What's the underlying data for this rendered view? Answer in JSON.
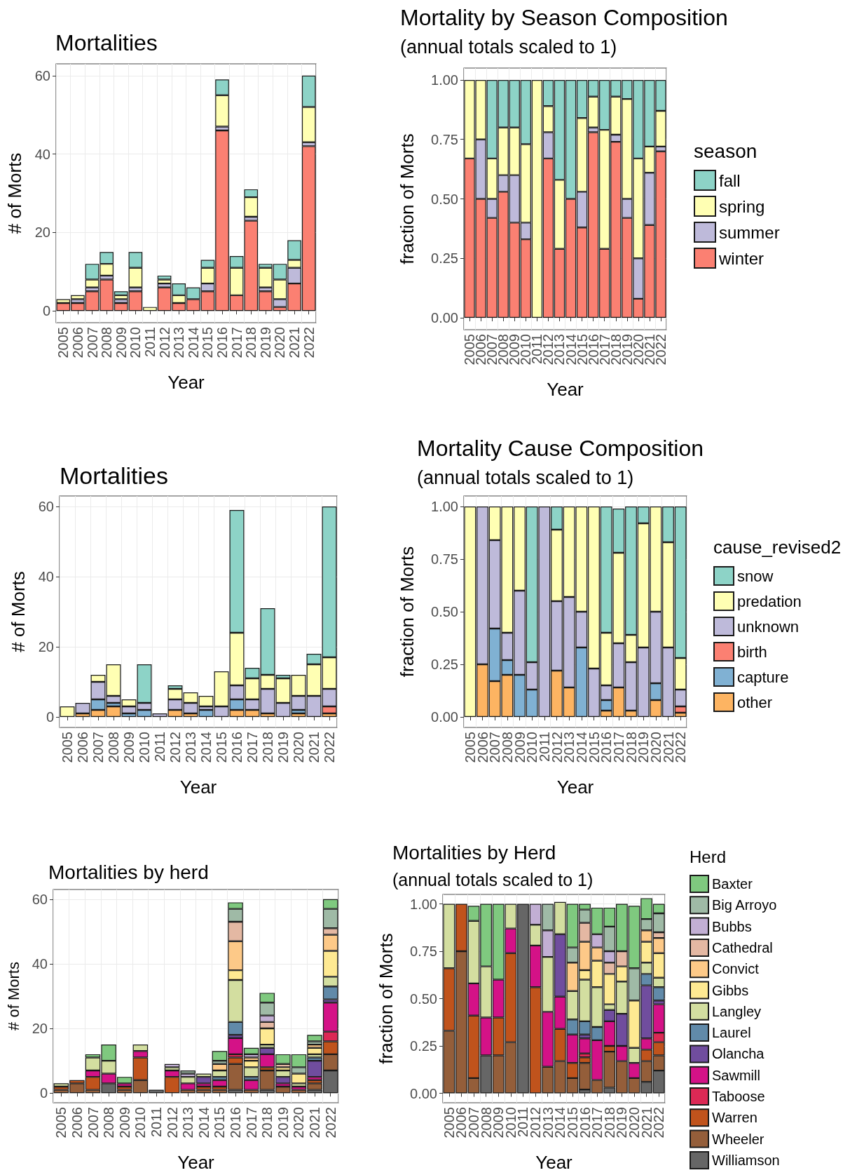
{
  "chart_data": [
    {
      "type": "bar",
      "stacked": true,
      "title": "Mortalities",
      "xlabel": "Year",
      "ylabel": "# of Morts",
      "grid": true,
      "categories": [
        "2005",
        "2006",
        "2007",
        "2008",
        "2009",
        "2010",
        "2011",
        "2012",
        "2013",
        "2014",
        "2015",
        "2016",
        "2017",
        "2018",
        "2019",
        "2020",
        "2021",
        "2022"
      ],
      "ylim": [
        -3,
        63
      ],
      "yticks": [
        0,
        20,
        40,
        60
      ],
      "series": [
        {
          "color": "#fb8072",
          "values": [
            2,
            2,
            5,
            8,
            2,
            5,
            null,
            6,
            2,
            3,
            5,
            46,
            4,
            23,
            5,
            1,
            7,
            42
          ]
        },
        {
          "color": "#bebada",
          "values": [
            null,
            1,
            1,
            1,
            1,
            1,
            null,
            1,
            null,
            null,
            2,
            1,
            null,
            1,
            1,
            2,
            4,
            1
          ]
        },
        {
          "color": "#ffffb3",
          "values": [
            1,
            1,
            2,
            3,
            1,
            5,
            1,
            1,
            2,
            null,
            4,
            8,
            7,
            5,
            5,
            5,
            2,
            9
          ]
        },
        {
          "color": "#8dd3c7",
          "values": [
            null,
            null,
            4,
            3,
            1,
            4,
            null,
            1,
            3,
            3,
            2,
            4,
            3,
            2,
            1,
            4,
            5,
            8
          ]
        }
      ]
    },
    {
      "type": "bar",
      "stacked": true,
      "title": "Mortality by Season Composition",
      "subtitle": "(annual totals scaled to 1)",
      "xlabel": "Year",
      "ylabel": "fraction of Morts",
      "grid": true,
      "legend": "right",
      "legend_title": "season",
      "categories": [
        "2005",
        "2006",
        "2007",
        "2008",
        "2009",
        "2010",
        "2011",
        "2012",
        "2013",
        "2014",
        "2015",
        "2016",
        "2017",
        "2018",
        "2019",
        "2020",
        "2021",
        "2022"
      ],
      "ylim": [
        -0.05,
        1.05
      ],
      "yticks": [
        {
          "value": 0,
          "label": "0.00"
        },
        {
          "value": 0.25,
          "label": "0.25"
        },
        {
          "value": 0.5,
          "label": "0.50"
        },
        {
          "value": 0.75,
          "label": "0.75"
        },
        {
          "value": 1,
          "label": "1.00"
        }
      ],
      "series": [
        {
          "name": "winter",
          "color": "#fb8072",
          "values": [
            0.67,
            0.5,
            0.42,
            0.53,
            0.4,
            0.33,
            null,
            0.67,
            0.29,
            0.5,
            0.38,
            0.78,
            0.29,
            0.74,
            0.42,
            0.08,
            0.39,
            0.7
          ]
        },
        {
          "name": "summer",
          "color": "#bebada",
          "values": [
            null,
            0.25,
            0.08,
            0.07,
            0.2,
            0.07,
            null,
            0.11,
            null,
            null,
            0.15,
            0.02,
            null,
            0.03,
            0.08,
            0.17,
            0.22,
            0.02
          ]
        },
        {
          "name": "spring",
          "color": "#ffffb3",
          "values": [
            0.33,
            0.25,
            0.17,
            0.2,
            0.2,
            0.33,
            1,
            0.11,
            0.29,
            null,
            0.31,
            0.13,
            0.5,
            0.16,
            0.42,
            0.42,
            0.11,
            0.15
          ]
        },
        {
          "name": "fall",
          "color": "#8dd3c7",
          "values": [
            null,
            null,
            0.33,
            0.2,
            0.2,
            0.27,
            null,
            0.11,
            0.42,
            0.5,
            0.16,
            0.07,
            0.21,
            0.07,
            0.08,
            0.33,
            0.28,
            0.13
          ]
        }
      ]
    },
    {
      "type": "bar",
      "stacked": true,
      "title": "Mortalities",
      "xlabel": "Year",
      "ylabel": "# of Morts",
      "grid": true,
      "categories": [
        "2005",
        "2006",
        "2007",
        "2008",
        "2009",
        "2010",
        "2011",
        "2012",
        "2013",
        "2014",
        "2015",
        "2016",
        "2017",
        "2018",
        "2019",
        "2020",
        "2021",
        "2022"
      ],
      "ylim": [
        -3,
        63
      ],
      "yticks": [
        0,
        20,
        40,
        60
      ],
      "series": [
        {
          "color": "#fdb462",
          "values": [
            null,
            1,
            2,
            3,
            null,
            null,
            null,
            2,
            1,
            null,
            null,
            2,
            2,
            1,
            null,
            1,
            null,
            1
          ]
        },
        {
          "color": "#80b1d3",
          "values": [
            null,
            null,
            3,
            1,
            1,
            2,
            null,
            null,
            null,
            2,
            null,
            3,
            null,
            null,
            null,
            1,
            null,
            null
          ]
        },
        {
          "color": "#fb8072",
          "values": [
            null,
            null,
            null,
            null,
            null,
            null,
            null,
            null,
            null,
            null,
            null,
            null,
            null,
            null,
            null,
            null,
            null,
            2
          ]
        },
        {
          "color": "#bebada",
          "values": [
            null,
            3,
            5,
            2,
            2,
            2,
            1,
            3,
            3,
            1,
            3,
            4,
            3,
            7,
            4,
            4,
            6,
            5
          ]
        },
        {
          "color": "#ffffb3",
          "values": [
            3,
            null,
            2,
            9,
            2,
            null,
            null,
            3,
            3,
            3,
            10,
            15,
            6,
            4,
            7,
            6,
            9,
            9
          ]
        },
        {
          "color": "#8dd3c7",
          "values": [
            null,
            null,
            null,
            null,
            null,
            11,
            null,
            1,
            null,
            null,
            null,
            35,
            3,
            19,
            1,
            null,
            3,
            43
          ]
        }
      ]
    },
    {
      "type": "bar",
      "stacked": true,
      "title": "Mortality Cause Composition",
      "subtitle": "(annual totals scaled to 1)",
      "xlabel": "Year",
      "ylabel": "fraction of Morts",
      "grid": true,
      "legend": "right",
      "legend_title": "cause_revised2",
      "categories": [
        "2005",
        "2006",
        "2007",
        "2008",
        "2009",
        "2010",
        "2011",
        "2012",
        "2013",
        "2014",
        "2015",
        "2016",
        "2017",
        "2018",
        "2019",
        "2020",
        "2021",
        "2022"
      ],
      "ylim": [
        -0.05,
        1.05
      ],
      "yticks": [
        {
          "value": 0,
          "label": "0.00"
        },
        {
          "value": 0.25,
          "label": "0.25"
        },
        {
          "value": 0.5,
          "label": "0.50"
        },
        {
          "value": 0.75,
          "label": "0.75"
        },
        {
          "value": 1,
          "label": "1.00"
        }
      ],
      "series": [
        {
          "name": "other",
          "color": "#fdb462",
          "values": [
            null,
            0.25,
            0.17,
            0.2,
            null,
            null,
            null,
            0.22,
            0.14,
            null,
            null,
            0.03,
            0.14,
            0.03,
            null,
            0.08,
            null,
            0.02
          ]
        },
        {
          "name": "capture",
          "color": "#80b1d3",
          "values": [
            null,
            null,
            0.25,
            0.07,
            0.2,
            0.13,
            null,
            null,
            null,
            0.33,
            null,
            0.05,
            null,
            null,
            null,
            0.08,
            null,
            null
          ]
        },
        {
          "name": "birth",
          "color": "#fb8072",
          "values": [
            null,
            null,
            null,
            null,
            null,
            null,
            null,
            null,
            null,
            null,
            null,
            null,
            null,
            null,
            null,
            null,
            null,
            0.03
          ]
        },
        {
          "name": "unknown",
          "color": "#bebada",
          "values": [
            null,
            0.75,
            0.42,
            0.13,
            0.4,
            0.13,
            1,
            0.33,
            0.43,
            0.17,
            0.23,
            0.07,
            0.21,
            0.23,
            0.33,
            0.34,
            0.33,
            0.08
          ]
        },
        {
          "name": "predation",
          "color": "#ffffb3",
          "values": [
            1,
            null,
            0.16,
            0.6,
            0.4,
            null,
            null,
            0.34,
            0.43,
            0.5,
            0.77,
            0.25,
            0.43,
            0.13,
            0.59,
            0.5,
            0.5,
            0.15
          ]
        },
        {
          "name": "snow",
          "color": "#8dd3c7",
          "values": [
            null,
            null,
            null,
            null,
            null,
            0.74,
            null,
            0.11,
            null,
            null,
            null,
            0.6,
            0.21,
            0.61,
            0.08,
            null,
            0.17,
            0.72
          ]
        }
      ]
    },
    {
      "type": "bar",
      "stacked": true,
      "title": "Mortalities by herd",
      "xlabel": "Year",
      "ylabel": "# of Morts",
      "grid": true,
      "categories": [
        "2005",
        "2006",
        "2007",
        "2008",
        "2009",
        "2010",
        "2011",
        "2012",
        "2013",
        "2014",
        "2015",
        "2016",
        "2017",
        "2018",
        "2019",
        "2020",
        "2021",
        "2022"
      ],
      "ylim": [
        -3,
        63
      ],
      "yticks": [
        0,
        20,
        40,
        60
      ],
      "series": [
        {
          "color": "#666666",
          "values": [
            null,
            null,
            null,
            3,
            null,
            null,
            1,
            null,
            null,
            null,
            null,
            1,
            null,
            1,
            null,
            null,
            1,
            7
          ]
        },
        {
          "color": "#945e3a",
          "values": [
            1,
            3,
            1,
            null,
            1,
            4,
            null,
            null,
            1,
            1,
            1,
            8,
            1,
            6,
            2,
            1,
            2,
            5
          ]
        },
        {
          "color": "#c0531c",
          "values": [
            1,
            1,
            4,
            null,
            1,
            7,
            null,
            5,
            null,
            1,
            1,
            2,
            null,
            1,
            null,
            null,
            1,
            4
          ]
        },
        {
          "color": "#dc2955",
          "values": [
            null,
            null,
            null,
            null,
            null,
            null,
            null,
            null,
            null,
            null,
            null,
            1,
            null,
            null,
            null,
            null,
            null,
            3
          ]
        },
        {
          "color": "#d41287",
          "values": [
            null,
            null,
            2,
            3,
            1,
            2,
            null,
            2,
            2,
            1,
            2,
            5,
            3,
            4,
            1,
            1,
            1,
            9
          ]
        },
        {
          "color": "#704d9e",
          "values": [
            null,
            null,
            null,
            null,
            null,
            null,
            null,
            null,
            null,
            2,
            null,
            1,
            null,
            2,
            2,
            null,
            5,
            1
          ]
        },
        {
          "color": "#618aa9",
          "values": [
            null,
            null,
            null,
            null,
            null,
            null,
            null,
            null,
            null,
            null,
            1,
            4,
            1,
            null,
            null,
            null,
            1,
            4
          ]
        },
        {
          "color": "#d3dea0",
          "values": [
            1,
            null,
            4,
            4,
            null,
            2,
            null,
            1,
            2,
            1,
            2,
            13,
            3,
            1,
            2,
            1,
            1,
            3
          ]
        },
        {
          "color": "#fee992",
          "values": [
            null,
            null,
            null,
            null,
            null,
            null,
            null,
            null,
            null,
            null,
            null,
            3,
            2,
            5,
            1,
            3,
            2,
            8
          ]
        },
        {
          "color": "#fdc988",
          "values": [
            null,
            null,
            null,
            null,
            null,
            null,
            null,
            null,
            null,
            null,
            2,
            9,
            1,
            null,
            null,
            null,
            1,
            5
          ]
        },
        {
          "color": "#e4b8a3",
          "values": [
            null,
            null,
            null,
            null,
            null,
            null,
            null,
            null,
            null,
            null,
            null,
            6,
            null,
            2,
            1,
            null,
            null,
            2
          ]
        },
        {
          "color": "#c2afd4",
          "values": [
            null,
            null,
            null,
            null,
            null,
            null,
            null,
            1,
            1,
            null,
            null,
            null,
            1,
            2,
            null,
            null,
            null,
            null
          ]
        },
        {
          "color": "#9fbaa6",
          "values": [
            null,
            null,
            null,
            null,
            null,
            null,
            null,
            null,
            1,
            null,
            1,
            4,
            null,
            4,
            null,
            2,
            1,
            6
          ]
        },
        {
          "color": "#7fc97f",
          "values": [
            null,
            null,
            1,
            5,
            2,
            null,
            null,
            null,
            null,
            null,
            3,
            2,
            2,
            3,
            3,
            4,
            2,
            3
          ]
        }
      ]
    },
    {
      "type": "bar",
      "stacked": true,
      "title": "Mortalities by Herd",
      "subtitle": "(annual totals scaled to 1)",
      "xlabel": "Year",
      "ylabel": "fraction of Morts",
      "grid": true,
      "legend": "right",
      "legend_title": "Herd",
      "categories": [
        "2005",
        "2006",
        "2007",
        "2008",
        "2009",
        "2010",
        "2011",
        "2012",
        "2013",
        "2014",
        "2015",
        "2016",
        "2017",
        "2018",
        "2019",
        "2020",
        "2021",
        "2022"
      ],
      "ylim": [
        -0.05,
        1.05
      ],
      "yticks": [
        {
          "value": 0,
          "label": "0.00"
        },
        {
          "value": 0.25,
          "label": "0.25"
        },
        {
          "value": 0.5,
          "label": "0.50"
        },
        {
          "value": 0.75,
          "label": "0.75"
        },
        {
          "value": 1,
          "label": "1.00"
        }
      ],
      "series": [
        {
          "name": "Williamson",
          "color": "#666666",
          "values": [
            null,
            null,
            null,
            0.2,
            null,
            null,
            1,
            null,
            null,
            null,
            null,
            0.02,
            null,
            0.03,
            null,
            null,
            0.06,
            0.12
          ]
        },
        {
          "name": "Wheeler",
          "color": "#945e3a",
          "values": [
            0.33,
            0.75,
            0.08,
            null,
            0.2,
            0.27,
            null,
            null,
            0.14,
            0.17,
            0.08,
            0.14,
            0.07,
            0.19,
            0.17,
            0.08,
            0.11,
            0.08
          ]
        },
        {
          "name": "Warren",
          "color": "#c0531c",
          "values": [
            0.33,
            0.25,
            0.33,
            null,
            0.2,
            0.47,
            null,
            0.56,
            null,
            0.17,
            0.08,
            0.03,
            null,
            0.03,
            null,
            null,
            0.06,
            0.07
          ]
        },
        {
          "name": "Taboose",
          "color": "#dc2955",
          "values": [
            null,
            null,
            null,
            null,
            null,
            null,
            null,
            null,
            null,
            null,
            null,
            0.02,
            null,
            null,
            null,
            null,
            null,
            0.05
          ]
        },
        {
          "name": "Sawmill",
          "color": "#d41287",
          "values": [
            null,
            null,
            0.17,
            0.2,
            0.2,
            0.13,
            null,
            0.22,
            0.29,
            0.17,
            0.15,
            0.08,
            0.21,
            0.13,
            0.08,
            0.08,
            0.06,
            0.15
          ]
        },
        {
          "name": "Olancha",
          "color": "#704d9e",
          "values": [
            null,
            null,
            null,
            null,
            null,
            null,
            null,
            null,
            null,
            0.33,
            null,
            0.02,
            null,
            0.06,
            0.17,
            null,
            0.28,
            0.02
          ]
        },
        {
          "name": "Laurel",
          "color": "#618aa9",
          "values": [
            null,
            null,
            null,
            null,
            null,
            null,
            null,
            null,
            null,
            null,
            0.08,
            0.07,
            0.07,
            null,
            null,
            null,
            0.06,
            0.07
          ]
        },
        {
          "name": "Langley",
          "color": "#d3dea0",
          "values": [
            0.34,
            null,
            0.33,
            0.27,
            null,
            0.13,
            null,
            0.11,
            0.29,
            0.17,
            0.15,
            0.22,
            0.21,
            0.03,
            0.17,
            0.08,
            0.06,
            0.05
          ]
        },
        {
          "name": "Gibbs",
          "color": "#fee992",
          "values": [
            null,
            null,
            null,
            null,
            null,
            null,
            null,
            null,
            null,
            null,
            null,
            0.05,
            0.14,
            0.16,
            0.08,
            0.25,
            0.11,
            0.13
          ]
        },
        {
          "name": "Convict",
          "color": "#fdc988",
          "values": [
            null,
            null,
            null,
            null,
            null,
            null,
            null,
            null,
            null,
            null,
            0.15,
            0.15,
            0.07,
            null,
            null,
            null,
            0.06,
            0.08
          ]
        },
        {
          "name": "Cathedral",
          "color": "#e4b8a3",
          "values": [
            null,
            null,
            null,
            null,
            null,
            null,
            null,
            null,
            null,
            null,
            null,
            0.1,
            null,
            0.06,
            0.08,
            null,
            null,
            0.03
          ]
        },
        {
          "name": "Bubbs",
          "color": "#c2afd4",
          "values": [
            null,
            null,
            null,
            null,
            null,
            null,
            null,
            0.11,
            0.14,
            null,
            null,
            null,
            0.07,
            0.06,
            null,
            null,
            null,
            null
          ]
        },
        {
          "name": "Big Arroyo",
          "color": "#9fbaa6",
          "values": [
            null,
            null,
            null,
            null,
            null,
            null,
            null,
            null,
            0.14,
            null,
            0.08,
            0.07,
            null,
            0.13,
            null,
            0.17,
            0.06,
            0.1
          ]
        },
        {
          "name": "Baxter",
          "color": "#7fc97f",
          "values": [
            null,
            null,
            0.08,
            0.33,
            0.4,
            null,
            null,
            null,
            null,
            null,
            0.23,
            0.03,
            0.14,
            0.1,
            0.25,
            0.33,
            0.11,
            0.05
          ]
        }
      ]
    }
  ]
}
